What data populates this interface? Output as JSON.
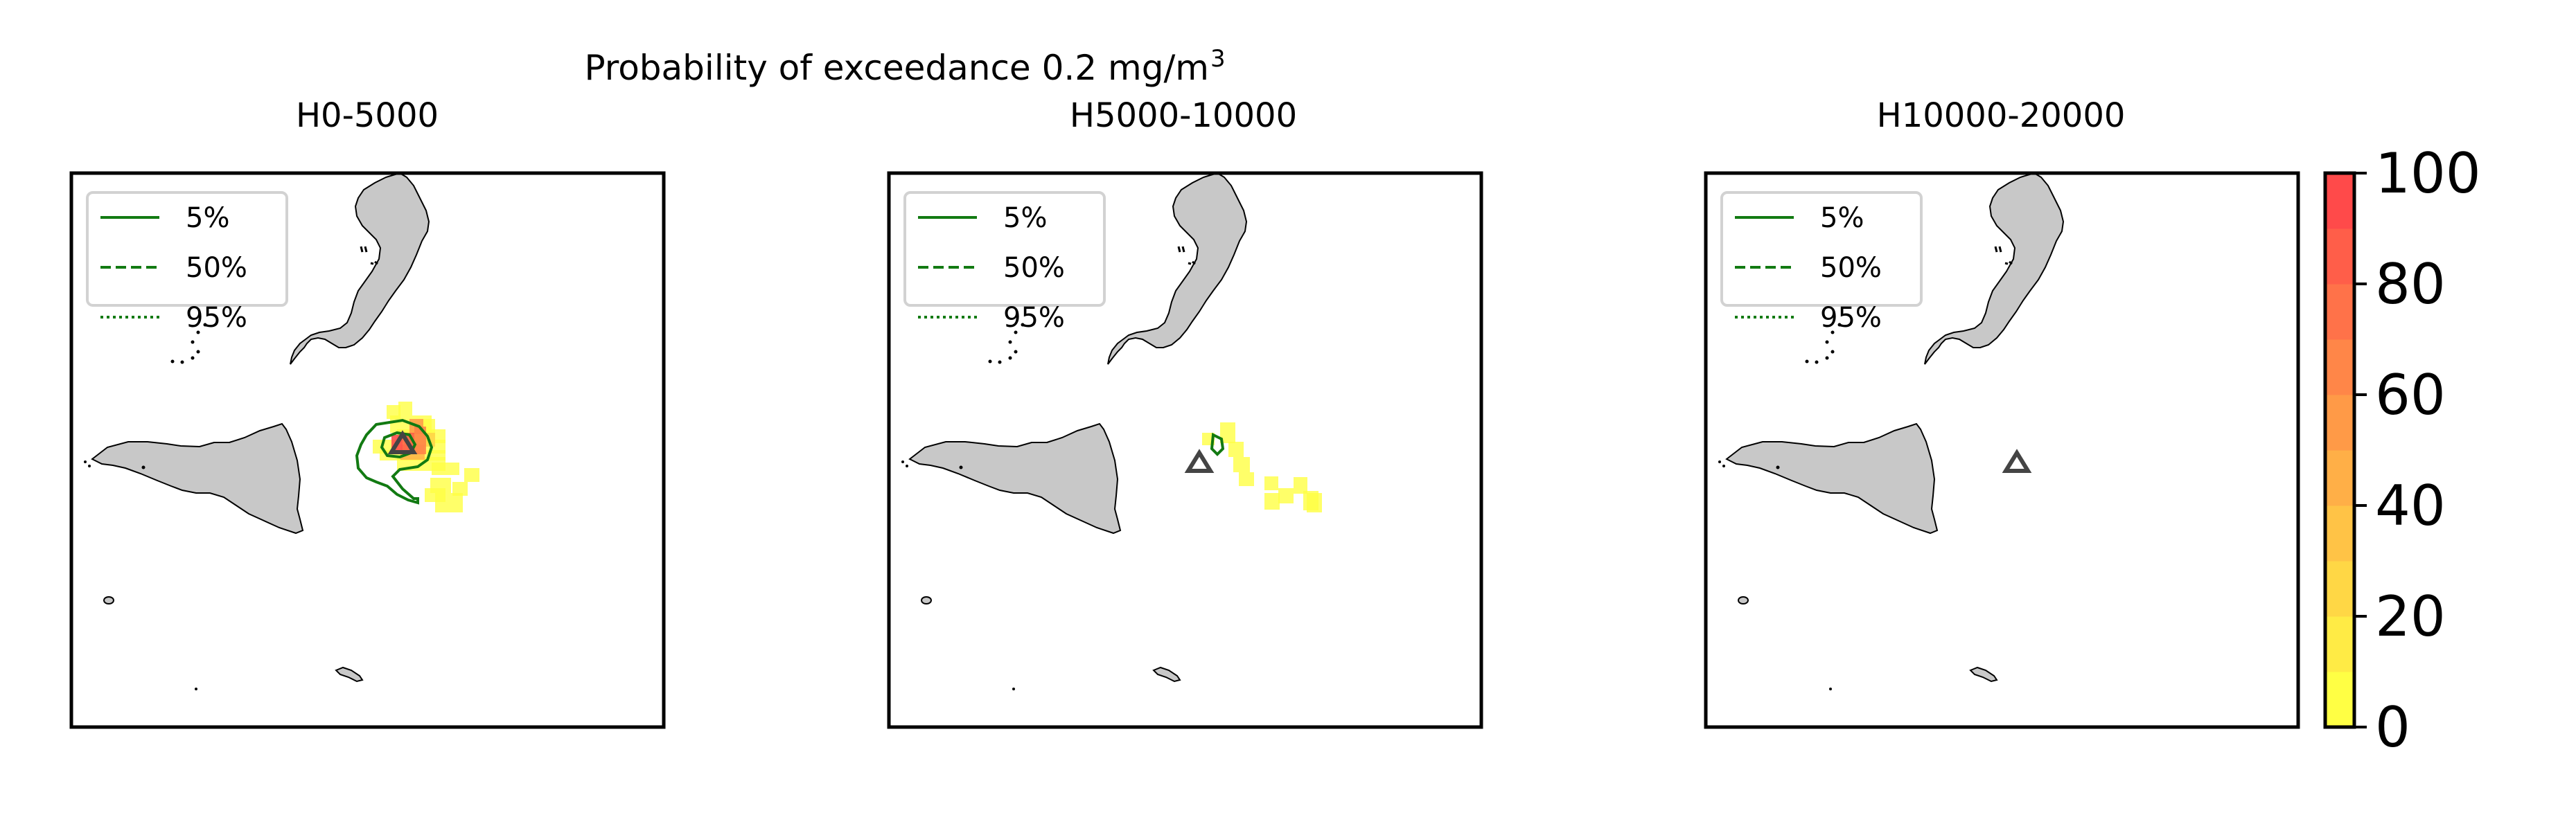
{
  "figure": {
    "suptitle_main": "Probability of exceedance 0.2 mg/m",
    "suptitle_sup": "3"
  },
  "panels": [
    {
      "title": "H0-5000",
      "legend": [
        {
          "label": "5%",
          "linestyle": "solid"
        },
        {
          "label": "50%",
          "linestyle": "dashed"
        },
        {
          "label": "95%",
          "linestyle": "dotted"
        }
      ]
    },
    {
      "title": "H5000-10000",
      "legend": [
        {
          "label": "5%",
          "linestyle": "solid"
        },
        {
          "label": "50%",
          "linestyle": "dashed"
        },
        {
          "label": "95%",
          "linestyle": "dotted"
        }
      ]
    },
    {
      "title": "H10000-20000",
      "legend": [
        {
          "label": "5%",
          "linestyle": "solid"
        },
        {
          "label": "50%",
          "linestyle": "dashed"
        },
        {
          "label": "95%",
          "linestyle": "dotted"
        }
      ]
    }
  ],
  "colorbar": {
    "ticks": [
      "0",
      "20",
      "40",
      "60",
      "80",
      "100"
    ],
    "range": [
      0,
      100
    ],
    "colors": {
      "low": "#ffff44",
      "high": "#ff4a4a"
    }
  },
  "colors": {
    "land": "#c8c8c8",
    "contour": "#127a12",
    "vent_marker": "#444444"
  }
}
